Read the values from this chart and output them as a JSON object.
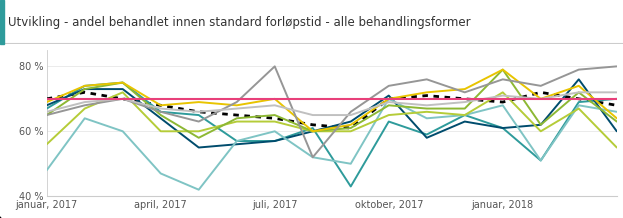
{
  "title": "Utvikling - andel behandlet innen standard forløpstid - alle behandlingsformer",
  "title_color": "#333333",
  "title_fontsize": 8.5,
  "background_color": "#ffffff",
  "header_bar_color": "#2E9B9B",
  "ylim": [
    40,
    85
  ],
  "yticks": [
    40,
    60,
    80
  ],
  "ytick_labels": [
    "40 %",
    "60 %",
    "80 %"
  ],
  "xlabel_ticks": [
    "januar, 2017",
    "april, 2017",
    "juli, 2017",
    "oktober, 2017",
    "januar, 2018"
  ],
  "n_points": 16,
  "target_line_y": 70,
  "target_line_color": "#e8407a",
  "series": [
    {
      "color": "#000000",
      "style": "dotted",
      "lw": 2.0,
      "values": [
        70,
        72,
        70,
        68,
        66,
        65,
        64,
        62,
        61,
        70,
        71,
        70,
        69,
        72,
        70,
        68
      ]
    },
    {
      "color": "#2E9B9B",
      "style": "solid",
      "lw": 1.4,
      "values": [
        67,
        74,
        75,
        66,
        65,
        57,
        57,
        61,
        43,
        63,
        59,
        65,
        61,
        51,
        69,
        70
      ]
    },
    {
      "color": "#004C6D",
      "style": "solid",
      "lw": 1.4,
      "values": [
        68,
        73,
        73,
        64,
        55,
        56,
        57,
        60,
        63,
        71,
        58,
        63,
        61,
        62,
        76,
        60
      ]
    },
    {
      "color": "#7FC4C4",
      "style": "solid",
      "lw": 1.4,
      "values": [
        48,
        64,
        60,
        47,
        42,
        57,
        60,
        52,
        50,
        70,
        64,
        65,
        68,
        51,
        68,
        66
      ]
    },
    {
      "color": "#B5CC38",
      "style": "solid",
      "lw": 1.4,
      "values": [
        56,
        67,
        72,
        60,
        60,
        63,
        63,
        60,
        60,
        65,
        66,
        65,
        72,
        60,
        67,
        55
      ]
    },
    {
      "color": "#8DB834",
      "style": "solid",
      "lw": 1.4,
      "values": [
        65,
        73,
        75,
        65,
        58,
        64,
        65,
        60,
        61,
        68,
        67,
        67,
        79,
        62,
        72,
        63
      ]
    },
    {
      "color": "#E8C400",
      "style": "solid",
      "lw": 1.4,
      "values": [
        69,
        74,
        75,
        68,
        69,
        68,
        70,
        60,
        62,
        70,
        72,
        73,
        79,
        70,
        74,
        64
      ]
    },
    {
      "color": "#969696",
      "style": "solid",
      "lw": 1.4,
      "values": [
        65,
        68,
        70,
        66,
        63,
        69,
        80,
        52,
        66,
        74,
        76,
        72,
        76,
        74,
        79,
        80
      ]
    },
    {
      "color": "#C0C0C0",
      "style": "solid",
      "lw": 1.4,
      "values": [
        66,
        69,
        70,
        67,
        66,
        67,
        68,
        65,
        65,
        69,
        68,
        69,
        71,
        70,
        72,
        72
      ]
    }
  ]
}
